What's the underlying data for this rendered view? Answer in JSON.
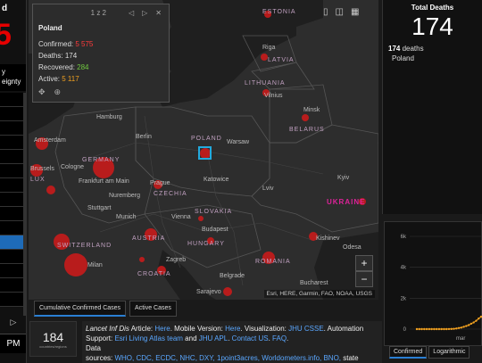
{
  "left": {
    "title_partial": "d",
    "big_number_partial": "5",
    "header_lines": [
      "y",
      "eignty"
    ],
    "next_glyph": "▷",
    "time_partial": "PM"
  },
  "map": {
    "popup": {
      "pagination": "1 z 2",
      "country": "Poland",
      "confirmed_label": "Confirmed:",
      "confirmed_value": "5 575",
      "deaths_label": "Deaths:",
      "deaths_value": "174",
      "recovered_label": "Recovered:",
      "recovered_value": "284",
      "active_label": "Active:",
      "active_value": "5 117",
      "prev_glyph": "◁",
      "next_glyph": "▷",
      "close_glyph": "✕",
      "move_glyph": "✥",
      "zoom_glyph": "⊕"
    },
    "tools": {
      "bookmark": "▯",
      "layers": "◫",
      "grid": "▦"
    },
    "zoom_in": "+",
    "zoom_out": "−",
    "attribution": "Esri, HERE, Garmin, FAO, NOAA, USGS",
    "labels": {
      "estonia": "ESTONIA",
      "riga": "Riga",
      "latvia": "LATVIA",
      "lithuania": "LITHUANIA",
      "vilnius": "Vilnius",
      "minsk": "Minsk",
      "belarus": "BELARUS",
      "hamburg": "Hamburg",
      "amsterdam": "Amsterdam",
      "berlin": "Berlin",
      "poland": "POLAND",
      "warsaw": "Warsaw",
      "brussels": "Brussels",
      "cologne": "Cologne",
      "germany": "GERMANY",
      "frankfurt": "Frankfurt am Main",
      "prague": "Prague",
      "czechia": "CZECHIA",
      "katowice": "Katowice",
      "lviv": "Lviv",
      "kyiv": "Kyiv",
      "lux": "LUX",
      "nuremberg": "Nuremberg",
      "stuttgart": "Stuttgart",
      "ukraine": "UKRAINE",
      "munich": "Munich",
      "vienna": "Vienna",
      "slovakia": "SLOVAKIA",
      "budapest": "Budapest",
      "austria": "AUSTRIA",
      "kishinev": "Kishinev",
      "switzerland": "SWITZERLAND",
      "hungary": "HUNGARY",
      "odesa": "Odesa",
      "milan": "Milan",
      "zagreb": "Zagreb",
      "romania": "ROMANIA",
      "croatia": "CROATIA",
      "belgrade": "Belgrade",
      "bucharest": "Bucharest",
      "sarajevo": "Sarajevo"
    },
    "tabs": [
      "Cumulative Confirmed Cases",
      "Active Cases"
    ]
  },
  "bottom": {
    "count": "184",
    "count_sub": "countries/regions",
    "info": {
      "lancet": "Lancet Inf Dis",
      "article_pre": " Article: ",
      "here1": "Here",
      "mobile_pre": ". Mobile Version: ",
      "here2": "Here",
      "viz_pre": ". Visualization: ",
      "jhu_csse": "JHU CSSE",
      "automation_pre": ". Automation Support: ",
      "esri": "Esri Living Atlas team",
      "and": " and ",
      "jhu_apl": "JHU APL",
      "dot": ". ",
      "contact": "Contact US",
      "dot2": ". ",
      "faq": "FAQ",
      "dot3": ".",
      "data": "Data",
      "sources_pre": "sources: ",
      "sources": "WHO, CDC, ECDC, NHC, DXY, 1point3acres, Worldometers.info, BNO,",
      "sources_post": " state"
    }
  },
  "deaths": {
    "title": "Total Deaths",
    "value": "174",
    "detail_value": "174",
    "detail_label": " deaths",
    "detail_country": "Poland"
  },
  "chart_data": {
    "type": "line",
    "y_ticks": [
      "6k",
      "4k",
      "2k",
      "0"
    ],
    "x_ticks": [
      "mar"
    ],
    "ylim": [
      0,
      6000
    ],
    "series": [
      {
        "values": [
          0,
          0,
          0,
          0,
          0,
          0,
          0,
          0,
          0,
          0,
          0,
          0,
          0,
          5,
          10,
          20,
          40,
          70,
          100,
          150,
          200,
          260,
          350,
          430,
          540,
          680,
          800
        ]
      }
    ],
    "tabs": [
      "Confirmed",
      "Logarithmic"
    ]
  },
  "colors": {
    "accent": "#d11a1a",
    "link": "#5aa7ff",
    "chart_line": "#f0a020",
    "background": "#1a1a1a"
  }
}
